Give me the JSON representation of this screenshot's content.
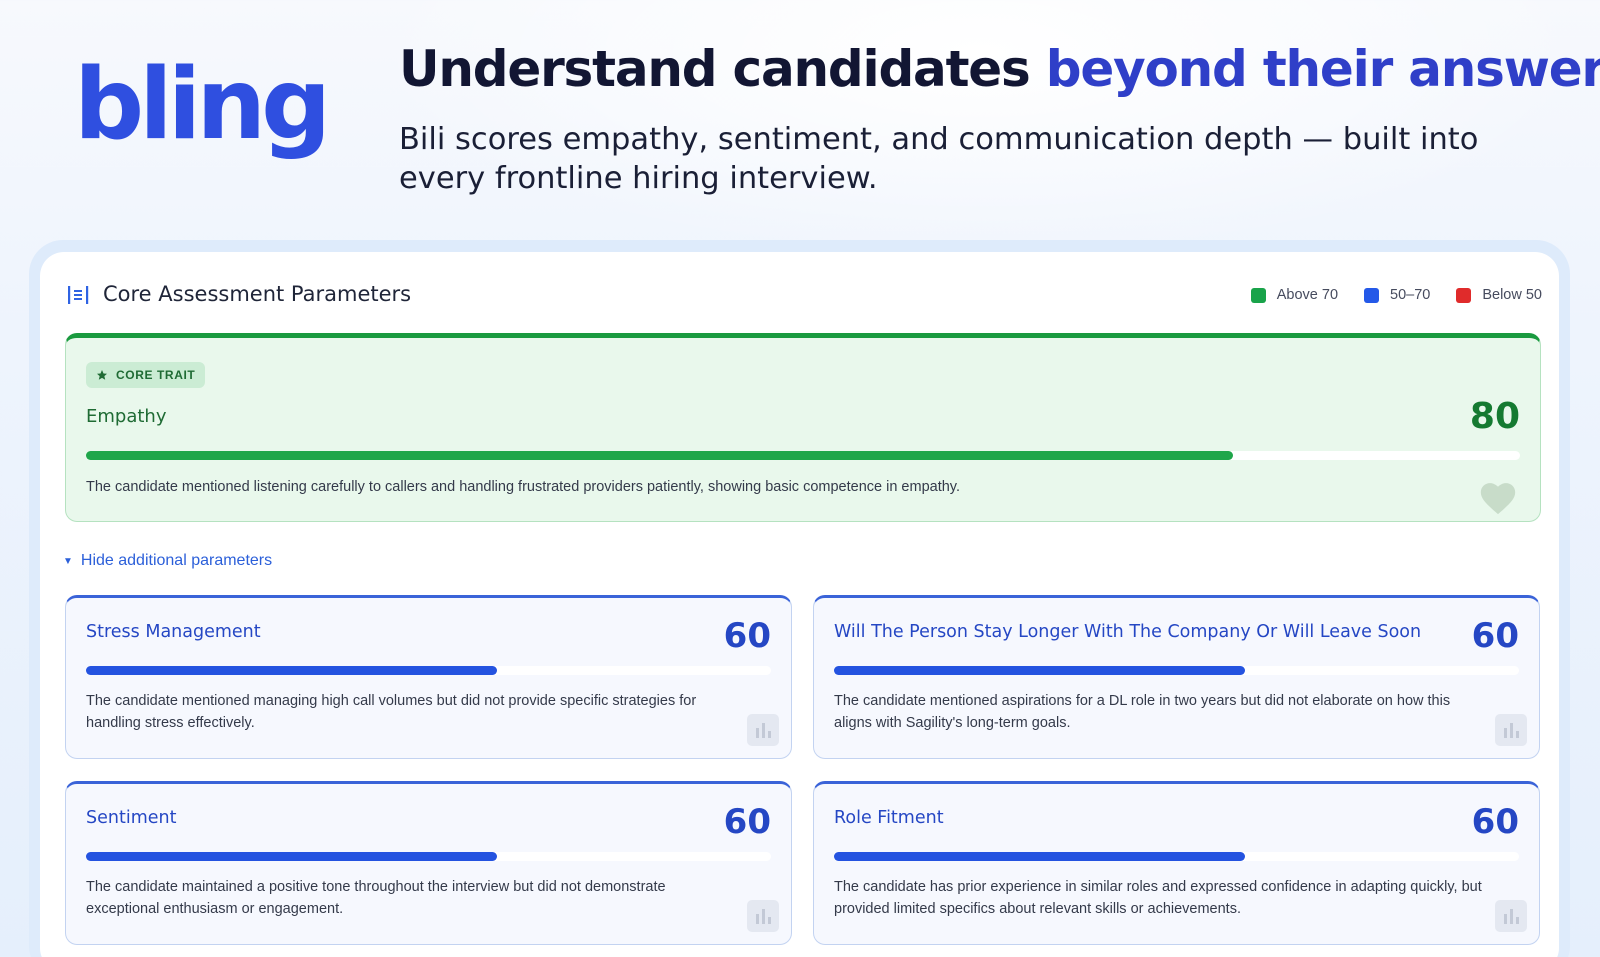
{
  "brand": {
    "logo_text": "bling",
    "logo_color": "#2f4fe0"
  },
  "hero": {
    "title_part1": "Understand candidates",
    "title_part2": "beyond their answers.",
    "subtitle": "Bili scores empathy, sentiment, and communication depth — built into every frontline hiring interview."
  },
  "panel": {
    "title": "Core Assessment Parameters",
    "icon": "list-icon",
    "legend": [
      {
        "label": "Above 70",
        "color": "#19a34a"
      },
      {
        "label": "50–70",
        "color": "#2459e8"
      },
      {
        "label": "Below 50",
        "color": "#e02b2b"
      }
    ]
  },
  "core_trait": {
    "badge": "CORE TRAIT",
    "badge_icon": "star-icon",
    "name": "Empathy",
    "score": "80",
    "score_fraction": 0.8,
    "description": "The candidate mentioned listening carefully to callers and handling frustrated providers patiently, showing basic competence in empathy.",
    "icon": "heart-icon"
  },
  "toggle": {
    "label": "Hide additional parameters",
    "icon": "caret-down-icon"
  },
  "parameters": [
    {
      "name": "Stress Management",
      "score": "60",
      "score_fraction": 0.6,
      "description": "The candidate mentioned managing high call volumes but did not provide specific strategies for handling stress effectively."
    },
    {
      "name": "Will The Person Stay Longer With The Company Or Will Leave Soon",
      "score": "60",
      "score_fraction": 0.6,
      "description": "The candidate mentioned aspirations for a DL role in two years but did not elaborate on how this aligns with Sagility's long-term goals."
    },
    {
      "name": "Sentiment",
      "score": "60",
      "score_fraction": 0.6,
      "description": "The candidate maintained a positive tone throughout the interview but did not demonstrate exceptional enthusiasm or engagement."
    },
    {
      "name": "Role Fitment",
      "score": "60",
      "score_fraction": 0.6,
      "description": "The candidate has prior experience in similar roles and expressed confidence in adapting quickly, but provided limited specifics about relevant skills or achievements."
    }
  ]
}
